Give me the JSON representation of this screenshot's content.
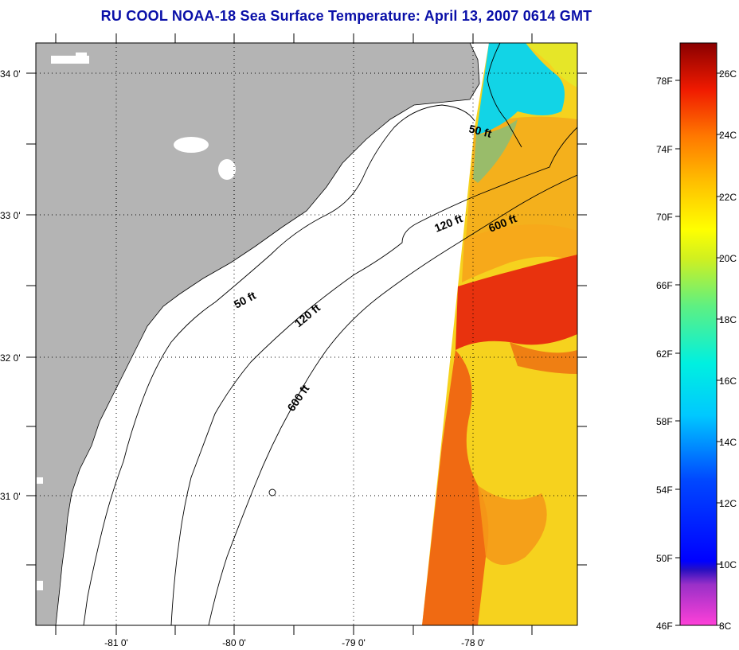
{
  "title": "RU COOL  NOAA-18  Sea Surface Temperature:  April 13, 2007 0614 GMT",
  "map": {
    "lat_labels": [
      "34 0'",
      "33 0'",
      "32 0'",
      "31 0'"
    ],
    "lon_labels": [
      "-81 0'",
      "-80 0'",
      "-79 0'",
      "-78 0'"
    ],
    "contour_labels": [
      "50 ft",
      "120 ft",
      "600 ft",
      "50 ft",
      "120 ft",
      "600 ft"
    ],
    "colors": {
      "land": "#b4b4b4",
      "ocean_no_data": "#ffffff",
      "sst_cold": "#12d8e6",
      "sst_warm_yellow": "#f6e812",
      "sst_orange": "#f8a018",
      "sst_red": "#e8320e"
    }
  },
  "colorbar": {
    "fahrenheit_labels": [
      "78F",
      "74F",
      "70F",
      "66F",
      "62F",
      "58F",
      "54F",
      "50F",
      "46F"
    ],
    "celsius_labels": [
      "26C",
      "24C",
      "22C",
      "20C",
      "18C",
      "16C",
      "14C",
      "12C",
      "10C",
      "8C"
    ],
    "range_c": [
      8,
      27
    ]
  }
}
